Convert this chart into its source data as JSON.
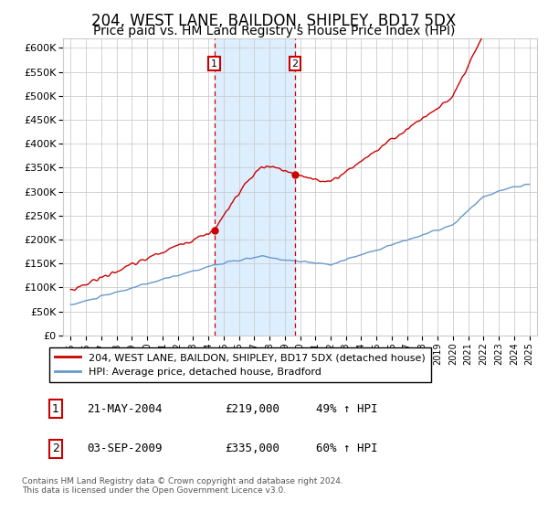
{
  "title": "204, WEST LANE, BAILDON, SHIPLEY, BD17 5DX",
  "subtitle": "Price paid vs. HM Land Registry's House Price Index (HPI)",
  "legend_line1": "204, WEST LANE, BAILDON, SHIPLEY, BD17 5DX (detached house)",
  "legend_line2": "HPI: Average price, detached house, Bradford",
  "annotation1_label": "1",
  "annotation1_date": "21-MAY-2004",
  "annotation1_price": "£219,000",
  "annotation1_hpi": "49% ↑ HPI",
  "annotation1_year": 2004.39,
  "annotation2_label": "2",
  "annotation2_date": "03-SEP-2009",
  "annotation2_price": "£335,000",
  "annotation2_hpi": "60% ↑ HPI",
  "annotation2_year": 2009.67,
  "footer": "Contains HM Land Registry data © Crown copyright and database right 2024.\nThis data is licensed under the Open Government Licence v3.0.",
  "ylim": [
    0,
    620000
  ],
  "xlim_start": 1994.5,
  "xlim_end": 2025.5,
  "red_color": "#cc0000",
  "blue_color": "#6699cc",
  "shade_color": "#ddeeff",
  "background_color": "#ffffff",
  "grid_color": "#cccccc",
  "title_fontsize": 12,
  "subtitle_fontsize": 10,
  "yticks": [
    0,
    50000,
    100000,
    150000,
    200000,
    250000,
    300000,
    350000,
    400000,
    450000,
    500000,
    550000,
    600000
  ],
  "ytick_labels": [
    "£0",
    "£50K",
    "£100K",
    "£150K",
    "£200K",
    "£250K",
    "£300K",
    "£350K",
    "£400K",
    "£450K",
    "£500K",
    "£550K",
    "£600K"
  ],
  "xticks": [
    1995,
    1996,
    1997,
    1998,
    1999,
    2000,
    2001,
    2002,
    2003,
    2004,
    2005,
    2006,
    2007,
    2008,
    2009,
    2010,
    2011,
    2012,
    2013,
    2014,
    2015,
    2016,
    2017,
    2018,
    2019,
    2020,
    2021,
    2022,
    2023,
    2024,
    2025
  ],
  "sale1_year": 2004.39,
  "sale1_price": 219000,
  "sale2_year": 2009.67,
  "sale2_price": 335000
}
